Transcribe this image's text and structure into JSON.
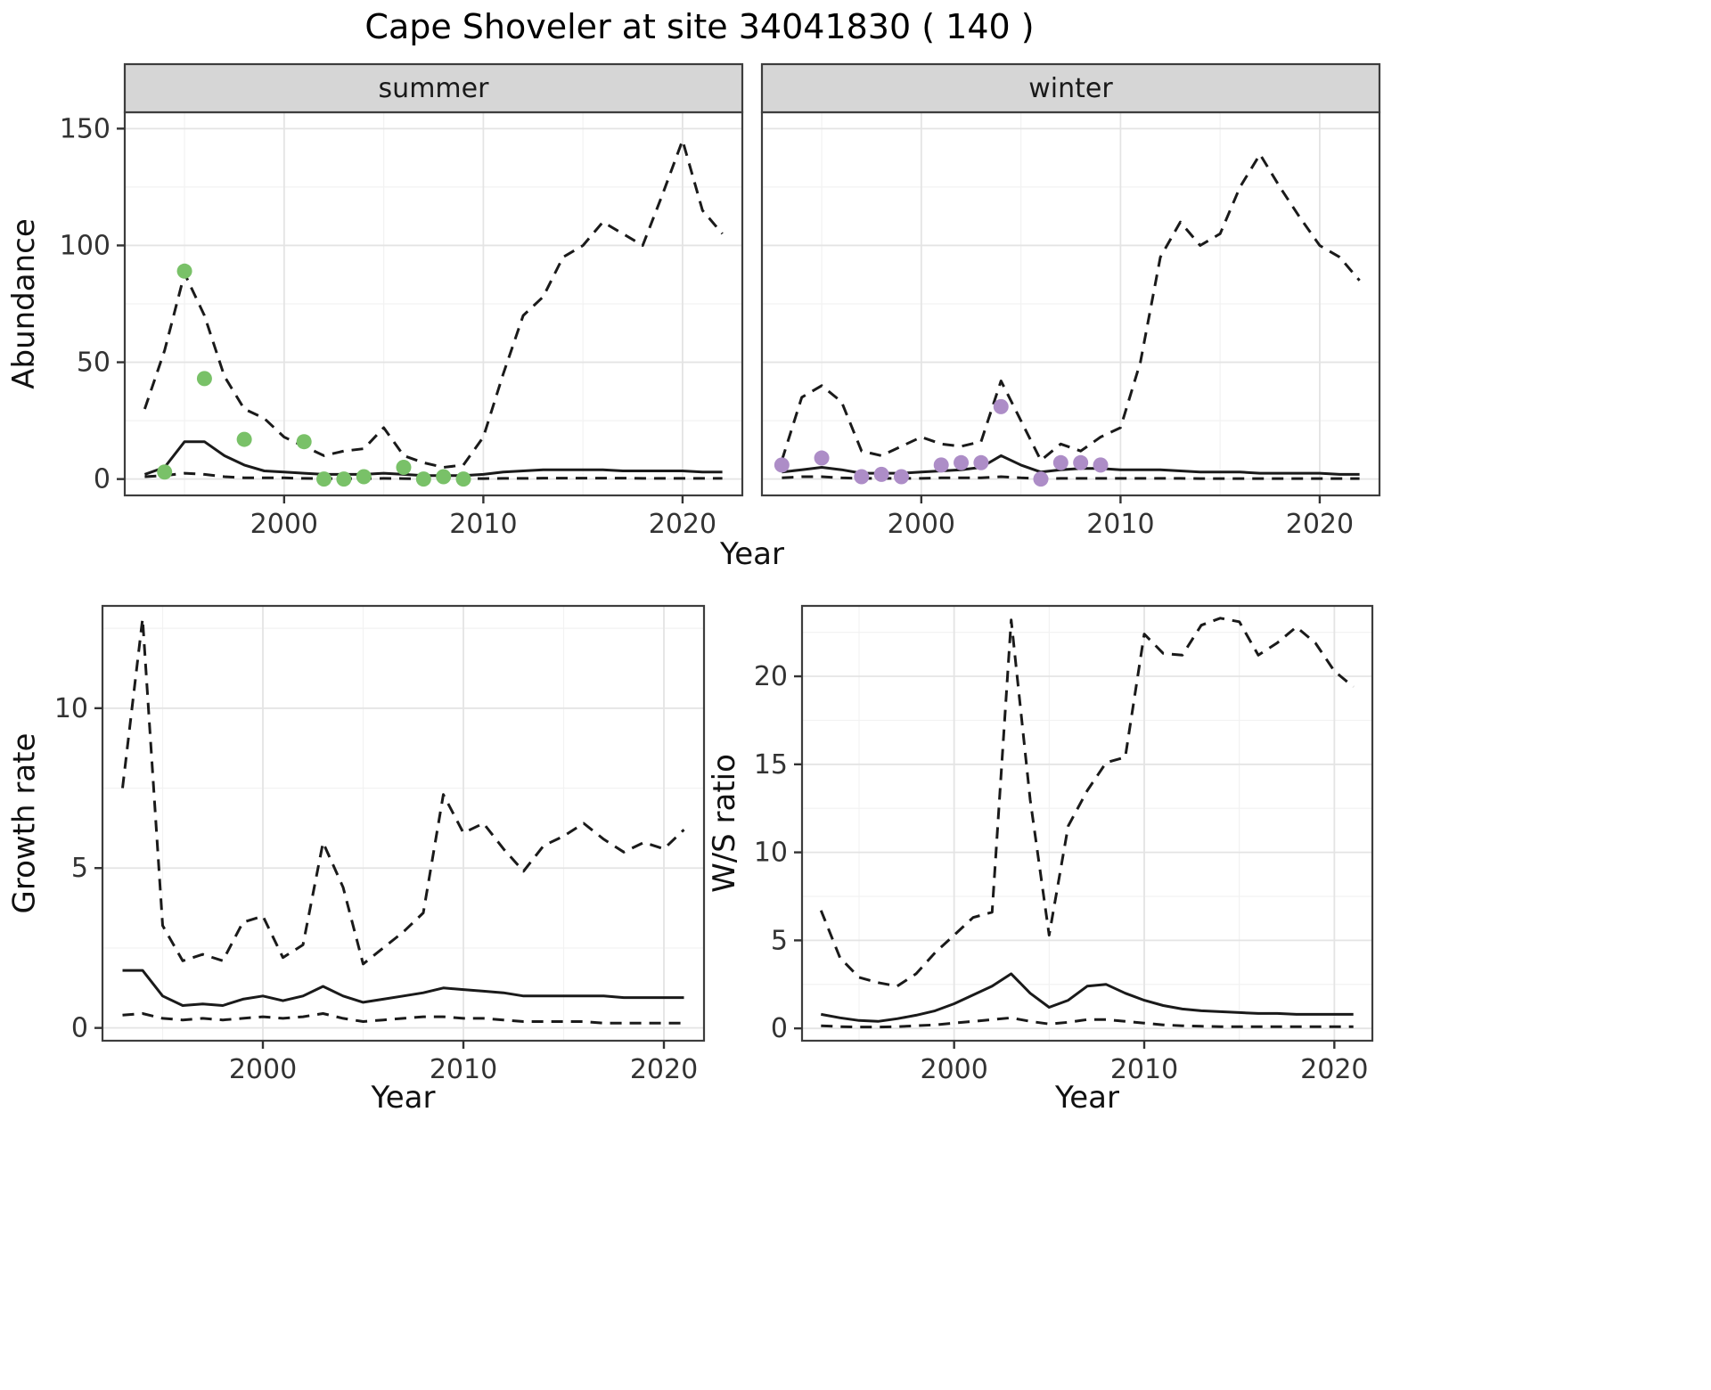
{
  "title": "Cape Shoveler at site 34041830 ( 140 )",
  "style": {
    "background": "#ffffff",
    "panel_bg": "#ffffff",
    "panel_border": "#3d3d3d",
    "strip_bg": "#d6d6d6",
    "strip_text": "#1a1a1a",
    "grid_major": "#e4e4e4",
    "grid_minor": "#f2f2f2",
    "line": "#1a1a1a",
    "tick": "#333333",
    "tick_text": "#333333"
  },
  "chart_data": [
    {
      "id": "abundance-summer",
      "type": "line",
      "facet": "summer",
      "xlabel": "Year",
      "ylabel": "Abundance",
      "xlim": [
        1992,
        2023
      ],
      "ylim": [
        -7,
        157
      ],
      "xticks": [
        2000,
        2010,
        2020
      ],
      "yticks": [
        0,
        50,
        100,
        150
      ],
      "x": [
        1993,
        1994,
        1995,
        1996,
        1997,
        1998,
        1999,
        2000,
        2001,
        2002,
        2003,
        2004,
        2005,
        2006,
        2007,
        2008,
        2009,
        2010,
        2011,
        2012,
        2013,
        2014,
        2015,
        2016,
        2017,
        2018,
        2019,
        2020,
        2021,
        2022
      ],
      "series": [
        {
          "name": "upper-ci",
          "dashed": true,
          "y": [
            30,
            55,
            88,
            70,
            44,
            30,
            26,
            18,
            14,
            10,
            12,
            13,
            22,
            10,
            7,
            5,
            6,
            18,
            45,
            70,
            78,
            95,
            100,
            110,
            105,
            100,
            122,
            145,
            115,
            105
          ]
        },
        {
          "name": "median",
          "dashed": false,
          "y": [
            2,
            5,
            16,
            16,
            10,
            6,
            3.5,
            3,
            2.5,
            2,
            2,
            2,
            2.5,
            2,
            1.5,
            1.5,
            1.5,
            2,
            3,
            3.5,
            4,
            4,
            4,
            4,
            3.5,
            3.5,
            3.5,
            3.5,
            3,
            3
          ]
        },
        {
          "name": "lower-ci",
          "dashed": true,
          "y": [
            1,
            1.5,
            2.5,
            2,
            1,
            0.5,
            0.5,
            0.5,
            0.3,
            0.2,
            0.2,
            0.2,
            0.3,
            0.2,
            0.1,
            0.1,
            0.1,
            0.2,
            0.3,
            0.3,
            0.4,
            0.4,
            0.4,
            0.4,
            0.4,
            0.3,
            0.3,
            0.3,
            0.3,
            0.3
          ]
        }
      ],
      "points": {
        "label": "observed summer counts",
        "color": "#79c168",
        "x": [
          1994,
          1995,
          1996,
          1998,
          2001,
          2002,
          2003,
          2004,
          2006,
          2007,
          2008,
          2009
        ],
        "y": [
          3,
          89,
          43,
          17,
          16,
          0,
          0,
          1,
          5,
          0,
          1,
          0
        ]
      }
    },
    {
      "id": "abundance-winter",
      "type": "line",
      "facet": "winter",
      "xlabel": "Year",
      "ylabel": "Abundance",
      "xlim": [
        1992,
        2023
      ],
      "ylim": [
        -7,
        157
      ],
      "xticks": [
        2000,
        2010,
        2020
      ],
      "yticks": [
        0,
        50,
        100,
        150
      ],
      "x": [
        1993,
        1994,
        1995,
        1996,
        1997,
        1998,
        1999,
        2000,
        2001,
        2002,
        2003,
        2004,
        2005,
        2006,
        2007,
        2008,
        2009,
        2010,
        2011,
        2012,
        2013,
        2014,
        2015,
        2016,
        2017,
        2018,
        2019,
        2020,
        2021,
        2022
      ],
      "series": [
        {
          "name": "upper-ci",
          "dashed": true,
          "y": [
            8,
            35,
            40,
            33,
            12,
            10,
            14,
            18,
            15,
            14,
            16,
            42,
            25,
            8,
            15,
            12,
            18,
            22,
            50,
            95,
            110,
            100,
            105,
            125,
            139,
            125,
            112,
            100,
            95,
            85
          ]
        },
        {
          "name": "median",
          "dashed": false,
          "y": [
            3,
            4,
            5,
            4,
            2.5,
            2.5,
            2.5,
            3,
            3.5,
            4,
            5,
            10,
            6,
            3,
            4,
            4.5,
            4.5,
            4,
            4,
            4,
            3.5,
            3,
            3,
            3,
            2.5,
            2.5,
            2.5,
            2.5,
            2,
            2
          ]
        },
        {
          "name": "lower-ci",
          "dashed": true,
          "y": [
            0.5,
            1,
            1,
            0.5,
            0.3,
            0.3,
            0.3,
            0.3,
            0.5,
            0.5,
            0.5,
            1,
            0.5,
            0.2,
            0.3,
            0.3,
            0.3,
            0.3,
            0.3,
            0.3,
            0.3,
            0.2,
            0.2,
            0.2,
            0.2,
            0.2,
            0.2,
            0.2,
            0.2,
            0.2
          ]
        }
      ],
      "points": {
        "label": "observed winter counts",
        "color": "#ad8dc7",
        "x": [
          1993,
          1995,
          1997,
          1998,
          1999,
          2001,
          2002,
          2003,
          2004,
          2006,
          2007,
          2008,
          2009
        ],
        "y": [
          6,
          9,
          1,
          2,
          1,
          6,
          7,
          7,
          31,
          0,
          7,
          7,
          6
        ]
      }
    },
    {
      "id": "growth",
      "type": "line",
      "xlabel": "Year",
      "ylabel": "Growth rate",
      "xlim": [
        1992,
        2022
      ],
      "ylim": [
        -0.4,
        13.2
      ],
      "xticks": [
        2000,
        2010,
        2020
      ],
      "yticks": [
        0,
        5,
        10
      ],
      "x": [
        1993,
        1994,
        1995,
        1996,
        1997,
        1998,
        1999,
        2000,
        2001,
        2002,
        2003,
        2004,
        2005,
        2006,
        2007,
        2008,
        2009,
        2010,
        2011,
        2012,
        2013,
        2014,
        2015,
        2016,
        2017,
        2018,
        2019,
        2020,
        2021
      ],
      "series": [
        {
          "name": "upper-ci",
          "dashed": true,
          "y": [
            7.5,
            12.8,
            3.2,
            2.1,
            2.3,
            2.1,
            3.3,
            3.5,
            2.2,
            2.6,
            5.8,
            4.4,
            2.0,
            2.5,
            3.0,
            3.6,
            7.3,
            6.1,
            6.4,
            5.6,
            4.9,
            5.7,
            6.0,
            6.4,
            5.9,
            5.5,
            5.8,
            5.6,
            6.2
          ]
        },
        {
          "name": "median",
          "dashed": false,
          "y": [
            1.8,
            1.8,
            1.0,
            0.7,
            0.75,
            0.7,
            0.9,
            1.0,
            0.85,
            1.0,
            1.3,
            1.0,
            0.8,
            0.9,
            1.0,
            1.1,
            1.25,
            1.2,
            1.15,
            1.1,
            1.0,
            1.0,
            1.0,
            1.0,
            1.0,
            0.95,
            0.95,
            0.95,
            0.95
          ]
        },
        {
          "name": "lower-ci",
          "dashed": true,
          "y": [
            0.4,
            0.45,
            0.3,
            0.25,
            0.3,
            0.25,
            0.3,
            0.35,
            0.3,
            0.35,
            0.45,
            0.3,
            0.2,
            0.25,
            0.3,
            0.35,
            0.35,
            0.3,
            0.3,
            0.25,
            0.2,
            0.2,
            0.2,
            0.2,
            0.15,
            0.15,
            0.15,
            0.15,
            0.15
          ]
        }
      ]
    },
    {
      "id": "ws",
      "type": "line",
      "xlabel": "Year",
      "ylabel": "W/S ratio",
      "xlim": [
        1992,
        2022
      ],
      "ylim": [
        -0.7,
        24
      ],
      "xticks": [
        2000,
        2010,
        2020
      ],
      "yticks": [
        0,
        5,
        10,
        15,
        20
      ],
      "x": [
        1993,
        1994,
        1995,
        1996,
        1997,
        1998,
        1999,
        2000,
        2001,
        2002,
        2003,
        2004,
        2005,
        2006,
        2007,
        2008,
        2009,
        2010,
        2011,
        2012,
        2013,
        2014,
        2015,
        2016,
        2017,
        2018,
        2019,
        2020,
        2021
      ],
      "series": [
        {
          "name": "upper-ci",
          "dashed": true,
          "y": [
            6.7,
            4.0,
            2.9,
            2.6,
            2.4,
            3.1,
            4.3,
            5.3,
            6.3,
            6.6,
            23.2,
            13.0,
            5.3,
            11.5,
            13.5,
            15.1,
            15.4,
            22.4,
            21.3,
            21.2,
            22.9,
            23.3,
            23.1,
            21.2,
            21.9,
            22.8,
            21.9,
            20.3,
            19.4
          ]
        },
        {
          "name": "median",
          "dashed": false,
          "y": [
            0.8,
            0.6,
            0.45,
            0.4,
            0.55,
            0.75,
            1.0,
            1.4,
            1.9,
            2.4,
            3.1,
            2.0,
            1.2,
            1.6,
            2.4,
            2.5,
            2.0,
            1.6,
            1.3,
            1.1,
            1.0,
            0.95,
            0.9,
            0.85,
            0.85,
            0.8,
            0.8,
            0.8,
            0.8
          ]
        },
        {
          "name": "lower-ci",
          "dashed": true,
          "y": [
            0.15,
            0.1,
            0.08,
            0.08,
            0.1,
            0.15,
            0.2,
            0.3,
            0.4,
            0.5,
            0.6,
            0.4,
            0.25,
            0.35,
            0.5,
            0.5,
            0.4,
            0.3,
            0.2,
            0.15,
            0.12,
            0.1,
            0.1,
            0.1,
            0.1,
            0.1,
            0.1,
            0.1,
            0.1
          ]
        }
      ]
    }
  ]
}
